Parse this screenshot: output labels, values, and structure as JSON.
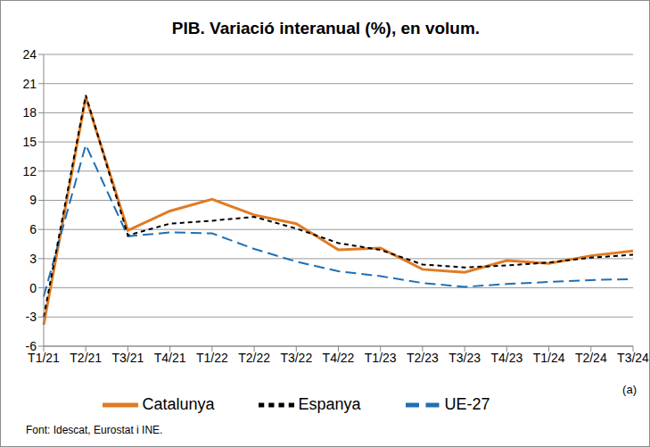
{
  "chart_data": {
    "type": "line",
    "title": "PIB. Variació interanual (%), en volum.",
    "categories": [
      "T1/21",
      "T2/21",
      "T3/21",
      "T4/21",
      "T1/22",
      "T2/22",
      "T3/22",
      "T4/22",
      "T1/23",
      "T2/23",
      "T3/23",
      "T4/23",
      "T1/24",
      "T2/24",
      "T3/24"
    ],
    "series": [
      {
        "name": "Catalunya",
        "color": "#e07b24",
        "line_style": "solid",
        "values": [
          -3.8,
          19.6,
          5.9,
          7.9,
          9.1,
          7.5,
          6.6,
          3.9,
          4.1,
          1.9,
          1.6,
          2.8,
          2.5,
          3.3,
          3.8
        ]
      },
      {
        "name": "UE-27",
        "color": "#1f6fb4",
        "line_style": "long_dash",
        "values": [
          -0.9,
          14.7,
          5.3,
          5.7,
          5.6,
          4.0,
          2.7,
          1.7,
          1.2,
          0.5,
          0.1,
          0.4,
          0.6,
          0.8,
          0.9
        ]
      },
      {
        "name": "Espanya",
        "color": "#000000",
        "line_style": "dashed",
        "values": [
          -3.0,
          19.8,
          5.4,
          6.6,
          6.9,
          7.3,
          6.1,
          4.6,
          3.9,
          2.4,
          2.1,
          2.3,
          2.6,
          3.1,
          3.4
        ]
      }
    ],
    "ylim": [
      -6,
      24
    ],
    "yticks": [
      -6,
      -3,
      0,
      3,
      6,
      9,
      12,
      15,
      18,
      21,
      24
    ],
    "grid": true,
    "legend": "bottom",
    "annotations": [
      "(a)",
      "Font: Idescat, Eurostat i INE."
    ]
  }
}
